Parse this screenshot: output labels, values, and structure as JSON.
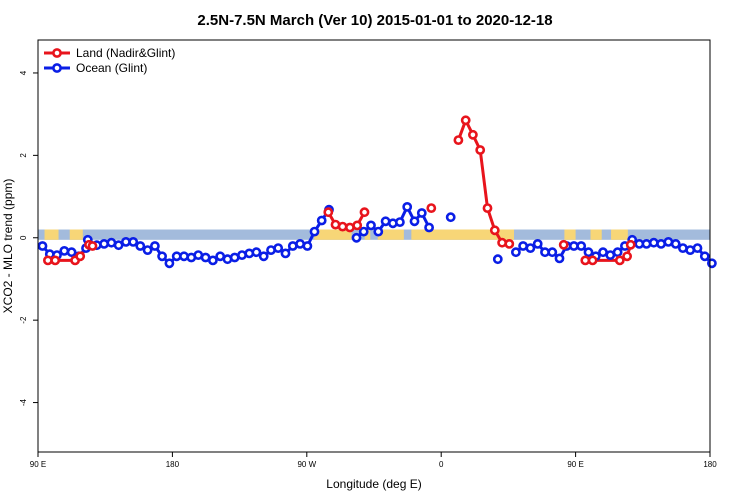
{
  "chart_data": {
    "type": "line",
    "title": "2.5N-7.5N March (Ver 10)   2015-01-01 to 2020-12-18",
    "xlabel": "Longitude (deg E)",
    "ylabel": "XCO2 - MLO trend (ppm)",
    "xlim": [
      0,
      360
    ],
    "ylim": [
      -5.2,
      4.8
    ],
    "x_ticks": [
      {
        "value": 0,
        "label": "90 E"
      },
      {
        "value": 72,
        "label": "180"
      },
      {
        "value": 144,
        "label": "90 W"
      },
      {
        "value": 216,
        "label": "0"
      },
      {
        "value": 288,
        "label": "90 E"
      },
      {
        "value": 360,
        "label": "180"
      }
    ],
    "y_ticks": [
      {
        "value": -4,
        "label": "-4"
      },
      {
        "value": -2,
        "label": "-2"
      },
      {
        "value": 0,
        "label": "0"
      },
      {
        "value": 2,
        "label": "2"
      },
      {
        "value": 4,
        "label": "4"
      }
    ],
    "grid": false,
    "legend_position": "top-left",
    "background_band": {
      "y0": -0.05,
      "y1": 0.2,
      "color": "#a3bbdc",
      "land_color": "#f7d677"
    },
    "series": [
      {
        "name": "Land (Nadir&Glint)",
        "color": "#e8141c",
        "segments": [
          [
            [
              5.3,
              -0.55
            ],
            [
              9.2,
              -0.55
            ],
            [
              19.9,
              -0.55
            ],
            [
              22.6,
              -0.45
            ],
            [
              27.3,
              -0.17
            ],
            [
              29.2,
              -0.2
            ]
          ],
          [
            [
              155.5,
              0.62
            ],
            [
              159.4,
              0.32
            ],
            [
              163.2,
              0.27
            ],
            [
              167.1,
              0.25
            ],
            [
              171.0,
              0.3
            ],
            [
              174.9,
              0.62
            ]
          ],
          [
            [
              210.7,
              0.72
            ]
          ],
          [
            [
              225.2,
              2.37
            ],
            [
              229.1,
              2.85
            ],
            [
              233.0,
              2.5
            ],
            [
              236.9,
              2.13
            ],
            [
              240.8,
              0.72
            ],
            [
              244.7,
              0.18
            ],
            [
              248.6,
              -0.12
            ],
            [
              252.5,
              -0.15
            ]
          ],
          [
            [
              281.6,
              -0.17
            ]
          ],
          [
            [
              293.2,
              -0.55
            ],
            [
              297.1,
              -0.55
            ],
            [
              311.7,
              -0.55
            ],
            [
              315.6,
              -0.45
            ],
            [
              317.5,
              -0.17
            ]
          ]
        ]
      },
      {
        "name": "Ocean (Glint)",
        "color": "#0a1ee6",
        "segments": [
          [
            [
              2.4,
              -0.2
            ],
            [
              6.3,
              -0.4
            ],
            [
              10.2,
              -0.42
            ],
            [
              14.1,
              -0.32
            ],
            [
              18.0,
              -0.35
            ],
            [
              21.8,
              -0.45
            ],
            [
              25.7,
              -0.25
            ],
            [
              26.7,
              -0.05
            ],
            [
              31.5,
              -0.18
            ],
            [
              35.4,
              -0.15
            ],
            [
              39.3,
              -0.12
            ],
            [
              43.2,
              -0.18
            ],
            [
              47.1,
              -0.1
            ],
            [
              51.0,
              -0.1
            ],
            [
              54.8,
              -0.2
            ],
            [
              58.7,
              -0.3
            ],
            [
              62.6,
              -0.2
            ],
            [
              66.5,
              -0.45
            ],
            [
              70.4,
              -0.62
            ],
            [
              74.3,
              -0.45
            ],
            [
              78.2,
              -0.45
            ],
            [
              82.1,
              -0.48
            ],
            [
              85.9,
              -0.42
            ],
            [
              89.8,
              -0.48
            ],
            [
              93.7,
              -0.55
            ],
            [
              97.6,
              -0.45
            ],
            [
              101.5,
              -0.52
            ],
            [
              105.4,
              -0.48
            ],
            [
              109.3,
              -0.42
            ],
            [
              113.2,
              -0.38
            ],
            [
              117.0,
              -0.35
            ],
            [
              120.9,
              -0.45
            ],
            [
              124.8,
              -0.3
            ],
            [
              128.7,
              -0.25
            ],
            [
              132.6,
              -0.38
            ],
            [
              136.5,
              -0.2
            ],
            [
              140.4,
              -0.15
            ],
            [
              144.3,
              -0.2
            ],
            [
              148.1,
              0.15
            ],
            [
              152.0,
              0.42
            ],
            [
              155.9,
              0.68
            ]
          ],
          [
            [
              170.6,
              0.0
            ],
            [
              174.5,
              0.15
            ],
            [
              178.4,
              0.3
            ],
            [
              182.3,
              0.15
            ],
            [
              186.2,
              0.4
            ],
            [
              190.1,
              0.35
            ],
            [
              193.9,
              0.38
            ],
            [
              197.8,
              0.75
            ],
            [
              201.7,
              0.4
            ],
            [
              205.6,
              0.6
            ],
            [
              209.5,
              0.25
            ]
          ],
          [
            [
              221.1,
              0.5
            ]
          ],
          [
            [
              246.3,
              -0.52
            ]
          ],
          [
            [
              256.0,
              -0.35
            ],
            [
              259.9,
              -0.2
            ],
            [
              263.8,
              -0.25
            ],
            [
              267.7,
              -0.15
            ],
            [
              271.6,
              -0.35
            ],
            [
              275.5,
              -0.35
            ],
            [
              279.4,
              -0.5
            ],
            [
              283.2,
              -0.2
            ],
            [
              287.1,
              -0.2
            ],
            [
              291.0,
              -0.2
            ],
            [
              294.9,
              -0.35
            ],
            [
              298.8,
              -0.45
            ],
            [
              302.7,
              -0.35
            ],
            [
              306.6,
              -0.42
            ],
            [
              310.5,
              -0.35
            ],
            [
              314.4,
              -0.2
            ],
            [
              318.3,
              -0.05
            ],
            [
              322.1,
              -0.15
            ],
            [
              326.0,
              -0.15
            ],
            [
              329.9,
              -0.12
            ],
            [
              333.8,
              -0.15
            ],
            [
              337.7,
              -0.1
            ],
            [
              341.6,
              -0.15
            ],
            [
              345.5,
              -0.25
            ],
            [
              349.4,
              -0.3
            ],
            [
              353.3,
              -0.25
            ],
            [
              357.2,
              -0.45
            ],
            [
              361.0,
              -0.62
            ]
          ]
        ]
      }
    ]
  }
}
